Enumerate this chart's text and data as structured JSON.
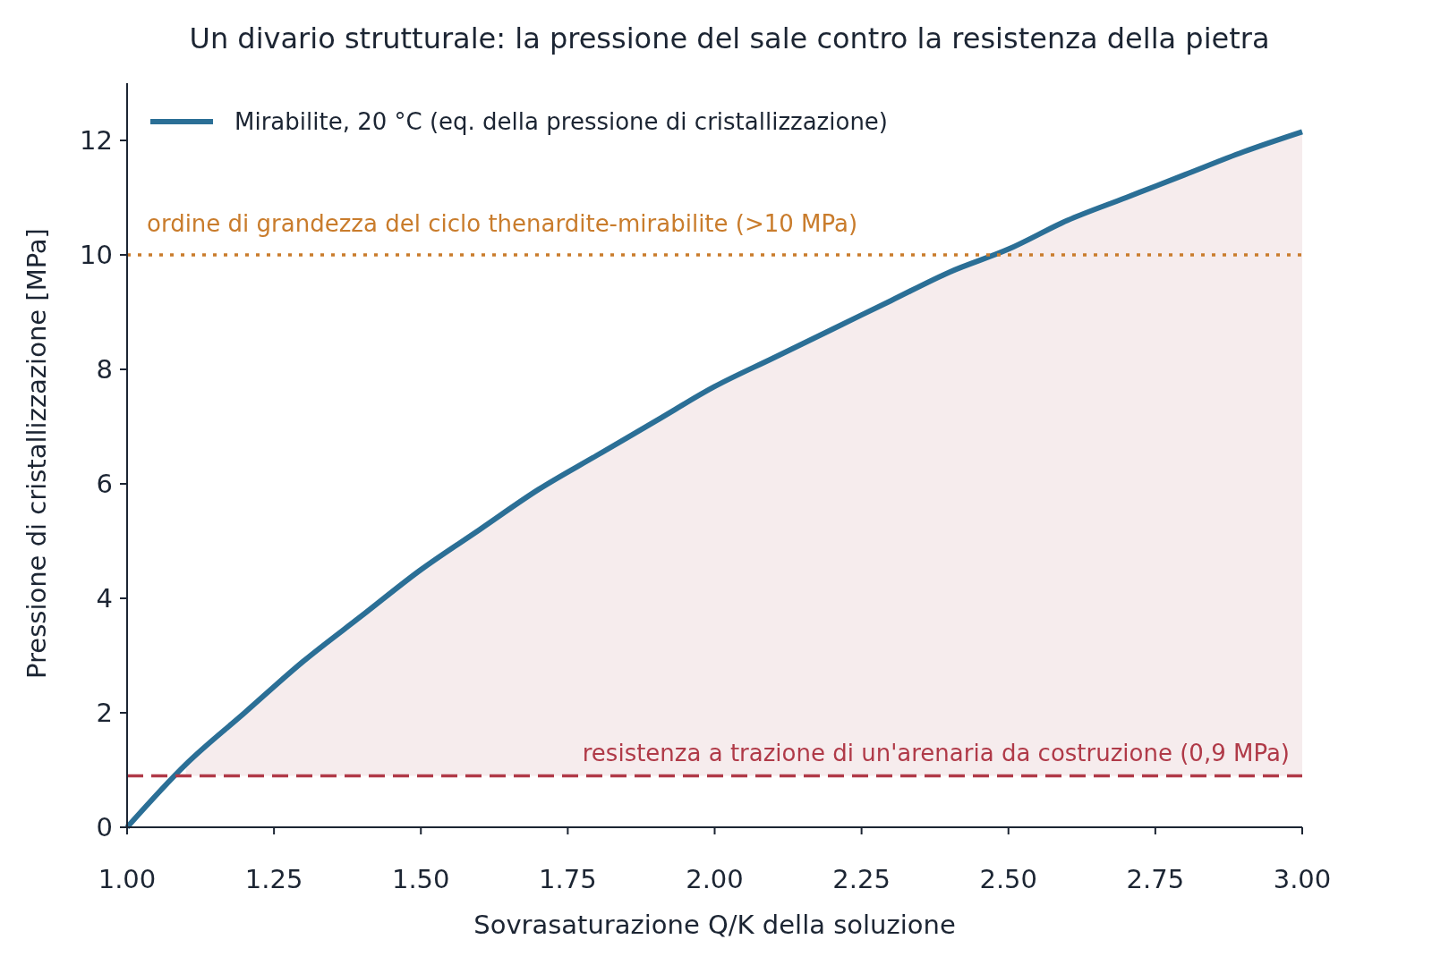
{
  "chart_data": {
    "type": "line",
    "title": "Un divario strutturale: la pressione del sale contro la resistenza della pietra",
    "xlabel": "Sovrasaturazione Q/K della soluzione",
    "ylabel": "Pressione di cristallizzazione [MPa]",
    "x": [
      1.0,
      1.1,
      1.2,
      1.3,
      1.4,
      1.5,
      1.6,
      1.7,
      1.8,
      1.9,
      2.0,
      2.1,
      2.2,
      2.3,
      2.4,
      2.5,
      2.6,
      2.7,
      2.8,
      2.9,
      3.0
    ],
    "series": [
      {
        "name": "Mirabilite, 20 °C (eq. della pressione di cristallizzazione)",
        "color": "#2b6f96",
        "values": [
          0,
          1.1,
          2.0,
          2.9,
          3.7,
          4.5,
          5.2,
          5.9,
          6.5,
          7.1,
          7.7,
          8.2,
          8.7,
          9.2,
          9.7,
          10.1,
          10.6,
          11.0,
          11.4,
          11.8,
          12.15
        ],
        "lower": [
          null,
          0.9,
          0.9,
          0.9,
          0.9,
          0.9,
          0.9,
          0.9,
          0.9,
          0.9,
          0.9,
          0.9,
          0.9,
          0.9,
          0.9,
          0.9,
          0.9,
          0.9,
          0.9,
          0.9,
          0.9
        ],
        "upper": [
          null,
          1.1,
          2.0,
          2.9,
          3.7,
          4.5,
          5.2,
          5.9,
          6.5,
          7.1,
          7.7,
          8.2,
          8.7,
          9.2,
          9.7,
          10.1,
          10.6,
          11.0,
          11.4,
          11.8,
          12.15
        ]
      }
    ],
    "xlim": [
      1,
      3
    ],
    "xticks": [
      {
        "value": 1,
        "label": "1.00"
      },
      {
        "value": 1.25,
        "label": "1.25"
      },
      {
        "value": 1.5,
        "label": "1.50"
      },
      {
        "value": 1.75,
        "label": "1.75"
      },
      {
        "value": 2,
        "label": "2.00"
      },
      {
        "value": 2.25,
        "label": "2.25"
      },
      {
        "value": 2.5,
        "label": "2.50"
      },
      {
        "value": 2.75,
        "label": "2.75"
      },
      {
        "value": 3,
        "label": "3.00"
      }
    ],
    "ylim": [
      0,
      13
    ],
    "yticks": [
      0,
      2,
      4,
      6,
      8,
      10,
      12
    ],
    "ref_lines": [
      {
        "axis": "y",
        "value": 10,
        "label": "ordine di grandezza del ciclo thenardite-mirabilite (>10 MPa)",
        "color": "#c97c2c",
        "line_style": "dotted"
      },
      {
        "axis": "y",
        "value": 0.9,
        "label": "resistenza a trazione di un'arenaria da costruzione (0,9 MPa)",
        "color": "#b03a48",
        "line_style": "dashed"
      }
    ],
    "legend": "top left",
    "grid": false,
    "line_style": "solid",
    "marker": "none"
  }
}
